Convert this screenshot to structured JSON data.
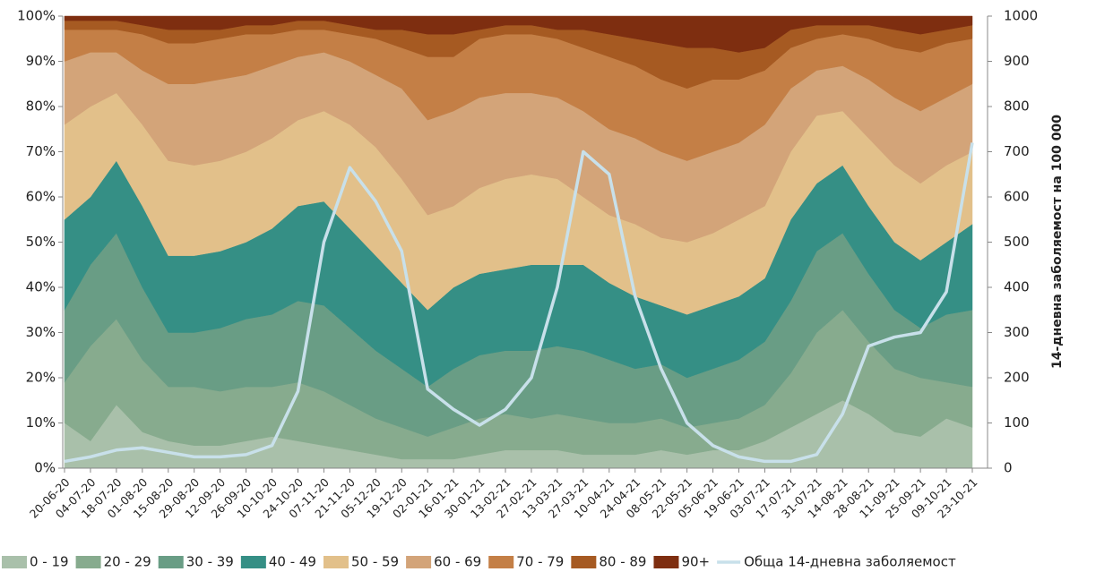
{
  "chart_data": {
    "type": "area",
    "stacked": true,
    "categories": [
      "20-06-20",
      "04-07-20",
      "18-07-20",
      "01-08-20",
      "15-08-20",
      "29-08-20",
      "12-09-20",
      "26-09-20",
      "10-10-20",
      "24-10-20",
      "07-11-20",
      "21-11-20",
      "05-12-20",
      "19-12-20",
      "02-01-21",
      "16-01-21",
      "30-01-21",
      "13-02-21",
      "27-02-21",
      "13-03-21",
      "27-03-21",
      "10-04-21",
      "24-04-21",
      "08-05-21",
      "22-05-21",
      "05-06-21",
      "19-06-21",
      "03-07-21",
      "17-07-21",
      "31-07-21",
      "14-08-21",
      "28-08-21",
      "11-09-21",
      "25-09-21",
      "09-10-21",
      "23-10-21"
    ],
    "series": [
      {
        "name": "0 - 19",
        "color": "#a9c0aa",
        "values": [
          10,
          6,
          14,
          8,
          6,
          5,
          5,
          6,
          7,
          6,
          5,
          4,
          3,
          2,
          2,
          2,
          3,
          4,
          4,
          4,
          3,
          3,
          3,
          4,
          3,
          4,
          4,
          6,
          9,
          12,
          15,
          12,
          8,
          7,
          11,
          9
        ]
      },
      {
        "name": "20 - 29",
        "color": "#87ab8e",
        "values": [
          9,
          21,
          19,
          16,
          12,
          13,
          12,
          12,
          11,
          13,
          12,
          10,
          8,
          7,
          5,
          7,
          8,
          8,
          7,
          8,
          8,
          7,
          7,
          7,
          6,
          6,
          7,
          8,
          12,
          18,
          20,
          16,
          14,
          13,
          8,
          9
        ]
      },
      {
        "name": "30 - 39",
        "color": "#699d85",
        "values": [
          16,
          18,
          19,
          16,
          12,
          12,
          14,
          15,
          16,
          18,
          19,
          17,
          15,
          13,
          11,
          13,
          14,
          14,
          15,
          15,
          15,
          14,
          12,
          12,
          11,
          12,
          13,
          14,
          16,
          18,
          17,
          15,
          13,
          11,
          15,
          17
        ]
      },
      {
        "name": "40 - 49",
        "color": "#358f85",
        "values": [
          20,
          15,
          16,
          18,
          17,
          17,
          17,
          17,
          19,
          21,
          23,
          22,
          21,
          19,
          17,
          18,
          18,
          18,
          19,
          18,
          19,
          17,
          16,
          13,
          14,
          14,
          14,
          14,
          18,
          15,
          15,
          15,
          15,
          15,
          16,
          19
        ]
      },
      {
        "name": "50 - 59",
        "color": "#e2c08a",
        "values": [
          21,
          20,
          15,
          18,
          21,
          20,
          20,
          20,
          20,
          19,
          20,
          23,
          24,
          23,
          21,
          18,
          19,
          20,
          20,
          19,
          15,
          15,
          16,
          15,
          16,
          16,
          17,
          16,
          15,
          15,
          12,
          15,
          17,
          17,
          17,
          16
        ]
      },
      {
        "name": "60 - 69",
        "color": "#d3a479",
        "values": [
          14,
          12,
          9,
          12,
          17,
          18,
          18,
          17,
          16,
          14,
          13,
          14,
          16,
          20,
          21,
          21,
          20,
          19,
          18,
          18,
          19,
          19,
          19,
          19,
          18,
          18,
          17,
          18,
          14,
          10,
          10,
          13,
          15,
          16,
          15,
          15
        ]
      },
      {
        "name": "70 - 79",
        "color": "#c47f46",
        "values": [
          7,
          5,
          5,
          8,
          9,
          9,
          9,
          9,
          7,
          6,
          5,
          6,
          8,
          9,
          14,
          12,
          13,
          13,
          13,
          13,
          14,
          16,
          16,
          16,
          16,
          16,
          14,
          12,
          9,
          7,
          7,
          9,
          11,
          13,
          12,
          10
        ]
      },
      {
        "name": "80 - 89",
        "color": "#a65a22",
        "values": [
          2,
          2,
          2,
          2,
          3,
          3,
          2,
          2,
          2,
          2,
          2,
          2,
          2,
          4,
          5,
          5,
          2,
          2,
          2,
          2,
          4,
          5,
          6,
          8,
          9,
          7,
          6,
          5,
          4,
          3,
          2,
          3,
          4,
          4,
          3,
          3
        ]
      },
      {
        "name": "90+",
        "color": "#7e2e10",
        "values": [
          1,
          1,
          1,
          2,
          3,
          3,
          3,
          2,
          2,
          1,
          1,
          2,
          3,
          3,
          4,
          4,
          3,
          2,
          2,
          3,
          3,
          4,
          5,
          6,
          7,
          7,
          8,
          7,
          3,
          2,
          2,
          2,
          3,
          4,
          3,
          2
        ]
      },
      {
        "name": "Обща 14-дневна заболяемост",
        "color": "#c8e0ea",
        "type": "line",
        "axis": "y2",
        "values": [
          15,
          25,
          40,
          45,
          35,
          25,
          25,
          30,
          50,
          170,
          500,
          665,
          590,
          480,
          175,
          130,
          95,
          130,
          200,
          400,
          700,
          650,
          380,
          220,
          100,
          50,
          25,
          15,
          15,
          30,
          120,
          270,
          290,
          300,
          390,
          720
        ]
      }
    ],
    "ylim": [
      0,
      100
    ],
    "yticks": [
      {
        "value": 0,
        "label": "0%"
      },
      {
        "value": 10,
        "label": "10%"
      },
      {
        "value": 20,
        "label": "20%"
      },
      {
        "value": 30,
        "label": "30%"
      },
      {
        "value": 40,
        "label": "40%"
      },
      {
        "value": 50,
        "label": "50%"
      },
      {
        "value": 60,
        "label": "60%"
      },
      {
        "value": 70,
        "label": "70%"
      },
      {
        "value": 80,
        "label": "80%"
      },
      {
        "value": 90,
        "label": "90%"
      },
      {
        "value": 100,
        "label": "100%"
      }
    ],
    "y2lim": [
      0,
      1000
    ],
    "y2ticks": [
      0,
      100,
      200,
      300,
      400,
      500,
      600,
      700,
      800,
      900,
      1000
    ],
    "y2label": "14-дневна заболяемост на 100 000",
    "legend": "bottom"
  }
}
